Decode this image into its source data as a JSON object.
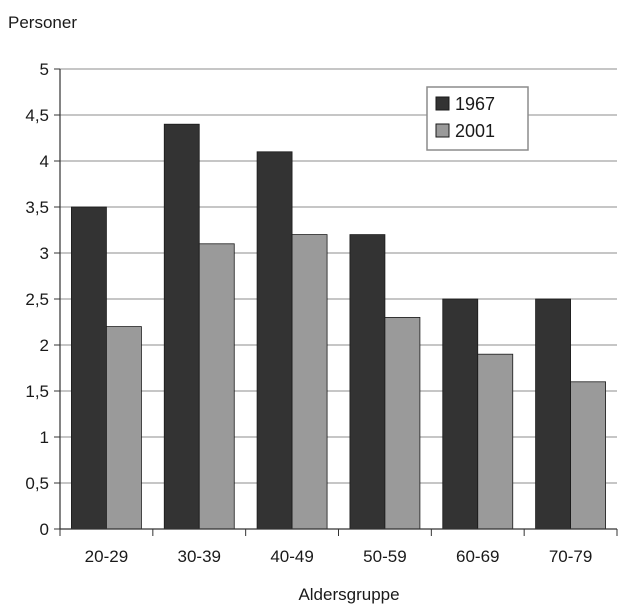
{
  "chart_data": {
    "type": "bar",
    "ylabel": "Personer",
    "xlabel": "Aldersgruppe",
    "categories": [
      "20-29",
      "30-39",
      "40-49",
      "50-59",
      "60-69",
      "70-79"
    ],
    "series": [
      {
        "name": "1967",
        "color": "#333333",
        "values": [
          3.5,
          4.4,
          4.1,
          3.2,
          2.5,
          2.5
        ]
      },
      {
        "name": "2001",
        "color": "#9a9a9a",
        "values": [
          2.2,
          3.1,
          3.2,
          2.3,
          1.9,
          1.6
        ]
      }
    ],
    "yticks": [
      "0",
      "0,5",
      "1",
      "1,5",
      "2",
      "2,5",
      "3",
      "3,5",
      "4",
      "4,5",
      "5"
    ],
    "ylim": [
      0,
      5
    ],
    "grid": true,
    "legend_position": "top-right"
  }
}
